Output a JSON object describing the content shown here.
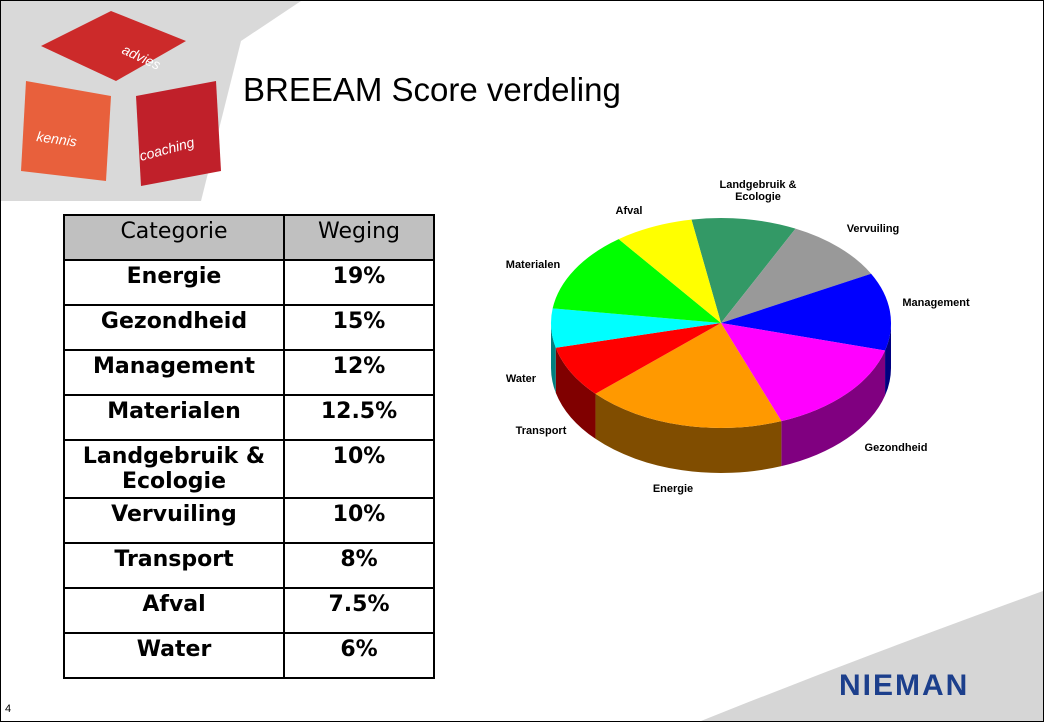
{
  "header": {
    "title": "BREEAM Score verdeling",
    "slide_number": "4"
  },
  "logo": {
    "cubes": [
      "advies",
      "kennis",
      "coaching"
    ],
    "brand": "NIEMAN"
  },
  "table": {
    "columns": [
      "Categorie",
      "Weging"
    ],
    "rows": [
      [
        "Energie",
        "19%"
      ],
      [
        "Gezondheid",
        "15%"
      ],
      [
        "Management",
        "12%"
      ],
      [
        "Materialen",
        "12.5%"
      ],
      [
        "Landgebruik & Ecologie",
        "10%"
      ],
      [
        "Vervuiling",
        "10%"
      ],
      [
        "Transport",
        "8%"
      ],
      [
        "Afval",
        "7.5%"
      ],
      [
        "Water",
        "6%"
      ]
    ]
  },
  "chart_data": {
    "type": "pie",
    "categories": [
      "Landgebruik & Ecologie",
      "Vervuiling",
      "Management",
      "Gezondheid",
      "Energie",
      "Transport",
      "Water",
      "Materialen",
      "Afval"
    ],
    "values": [
      10,
      10,
      12,
      15,
      19,
      8,
      6,
      12.5,
      7.5
    ],
    "colors": [
      "#339966",
      "#999999",
      "#0000ff",
      "#ff00ff",
      "#ff9900",
      "#ff0000",
      "#00ffff",
      "#00ff00",
      "#ffff00"
    ]
  }
}
